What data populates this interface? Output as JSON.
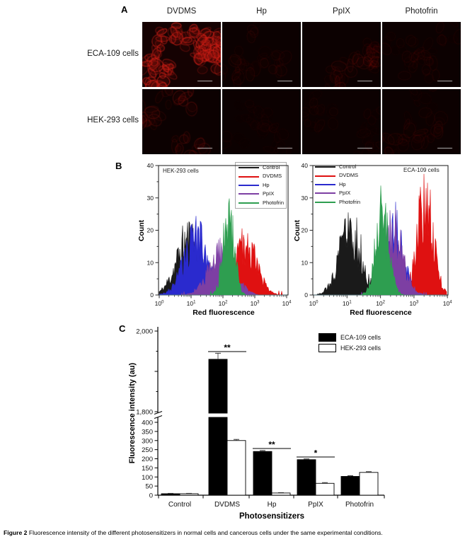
{
  "figure": {
    "panelA": {
      "label": "A",
      "col_headers": [
        "DVDMS",
        "Hp",
        "PpIX",
        "Photofrin"
      ],
      "row_labels": [
        "ECA-109 cells",
        "HEK-293 cells"
      ],
      "tiles": [
        {
          "name": "micrograph-eca109-dvdms",
          "row": "ECA-109 cells",
          "col": "DVDMS",
          "intensity": 1.0
        },
        {
          "name": "micrograph-eca109-hp",
          "row": "ECA-109 cells",
          "col": "Hp",
          "intensity": 0.13
        },
        {
          "name": "micrograph-eca109-ppix",
          "row": "ECA-109 cells",
          "col": "PpIX",
          "intensity": 0.2
        },
        {
          "name": "micrograph-eca109-photofrin",
          "row": "ECA-109 cells",
          "col": "Photofrin",
          "intensity": 0.1
        },
        {
          "name": "micrograph-hek293-dvdms",
          "row": "HEK-293 cells",
          "col": "DVDMS",
          "intensity": 0.3
        },
        {
          "name": "micrograph-hek293-hp",
          "row": "HEK-293 cells",
          "col": "Hp",
          "intensity": 0.06
        },
        {
          "name": "micrograph-hek293-ppix",
          "row": "HEK-293 cells",
          "col": "PpIX",
          "intensity": 0.08
        },
        {
          "name": "micrograph-hek293-photofrin",
          "row": "HEK-293 cells",
          "col": "Photofrin",
          "intensity": 0.12
        }
      ]
    },
    "panelB": {
      "label": "B"
    },
    "panelC": {
      "label": "C"
    },
    "caption": {
      "tag": "Figure 2",
      "text": " Fluorescence intensity of the different photosensitizers in normal cells and cancerous cells under the same experimental conditions."
    }
  },
  "chart_data": [
    {
      "type": "flow_histogram",
      "title": "HEK-293 cells",
      "xlabel": "Red fluorescence",
      "ylabel": "Count",
      "x_scale": "log10",
      "x_decades": [
        0,
        1,
        2,
        3,
        4
      ],
      "ylim": [
        0,
        40
      ],
      "yticks": [
        0,
        10,
        20,
        30,
        40
      ],
      "legend_position": "top-right",
      "series": [
        {
          "name": "Control",
          "color": "#1a1a1a",
          "peak_log10": 0.95,
          "sigma_log10": 0.4,
          "peak_count": 21
        },
        {
          "name": "DVDMS",
          "color": "#df1111",
          "peak_log10": 2.72,
          "sigma_log10": 0.34,
          "peak_count": 19
        },
        {
          "name": "Hp",
          "color": "#2a2ace",
          "peak_log10": 1.15,
          "sigma_log10": 0.38,
          "peak_count": 21
        },
        {
          "name": "PpIX",
          "color": "#7d3fa3",
          "peak_log10": 1.95,
          "sigma_log10": 0.4,
          "peak_count": 15
        },
        {
          "name": "Photofrin",
          "color": "#2e9e50",
          "peak_log10": 2.18,
          "sigma_log10": 0.17,
          "peak_count": 31
        }
      ]
    },
    {
      "type": "flow_histogram",
      "title": "ECA-109 cells",
      "xlabel": "Red fluorescence",
      "ylabel": "Count",
      "x_scale": "log10",
      "x_decades": [
        0,
        1,
        2,
        3,
        4
      ],
      "ylim": [
        0,
        40
      ],
      "yticks": [
        0,
        10,
        20,
        30,
        40
      ],
      "legend_position": "top-left",
      "series": [
        {
          "name": "Control",
          "color": "#1a1a1a",
          "peak_log10": 1.1,
          "sigma_log10": 0.33,
          "peak_count": 25
        },
        {
          "name": "DVDMS",
          "color": "#df1111",
          "peak_log10": 3.33,
          "sigma_log10": 0.24,
          "peak_count": 36
        },
        {
          "name": "Hp",
          "color": "#2a2ace",
          "peak_log10": 2.45,
          "sigma_log10": 0.24,
          "peak_count": 25
        },
        {
          "name": "PpIX",
          "color": "#7d3fa3",
          "peak_log10": 2.38,
          "sigma_log10": 0.3,
          "peak_count": 23
        },
        {
          "name": "Photofrin",
          "color": "#2e9e50",
          "peak_log10": 2.05,
          "sigma_log10": 0.2,
          "peak_count": 29
        }
      ]
    },
    {
      "type": "bar",
      "title": "",
      "xlabel": "Photosensitizers",
      "ylabel": "Fluorescence intensity (au)",
      "categories": [
        "Control",
        "DVDMS",
        "Hp",
        "PpIX",
        "Photofrin"
      ],
      "series": [
        {
          "name": "ECA-109 cells",
          "fill": "#000000",
          "values": [
            8,
            1930,
            240,
            195,
            103
          ],
          "errors": [
            2,
            15,
            5,
            4,
            4
          ]
        },
        {
          "name": "HEK-293 cells",
          "fill": "#ffffff",
          "values": [
            8,
            300,
            12,
            65,
            125
          ],
          "errors": [
            2,
            6,
            2,
            4,
            4
          ]
        }
      ],
      "axis_break": {
        "lower_max": 430,
        "upper_min": 1800,
        "upper_max": 2000
      },
      "yticks_lower": [
        [
          0,
          "0"
        ],
        [
          50,
          "50"
        ],
        [
          100,
          "100"
        ],
        [
          150,
          "150"
        ],
        [
          200,
          "200"
        ],
        [
          250,
          "250"
        ],
        [
          300,
          "300"
        ],
        [
          350,
          "350"
        ],
        [
          400,
          "400"
        ]
      ],
      "yticks_upper": [
        [
          1800,
          "1,800"
        ],
        [
          2000,
          "2,000"
        ]
      ],
      "significance": [
        {
          "category": "DVDMS",
          "label": "**"
        },
        {
          "category": "Hp",
          "label": "**"
        },
        {
          "category": "PpIX",
          "label": "*"
        }
      ],
      "legend_position": "top-right"
    }
  ]
}
